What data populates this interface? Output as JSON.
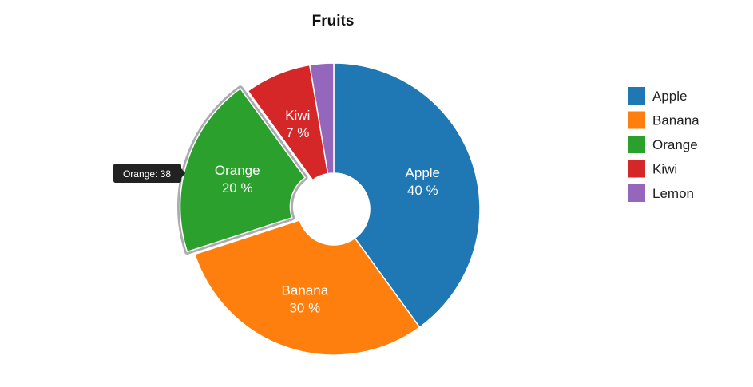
{
  "chart_data": {
    "type": "pie",
    "title": "Fruits",
    "donut": true,
    "legend_position": "right",
    "slices": [
      {
        "label": "Apple",
        "value": 76,
        "percent": 40,
        "color": "#1f77b4"
      },
      {
        "label": "Banana",
        "value": 57,
        "percent": 30,
        "color": "#ff7f0e"
      },
      {
        "label": "Orange",
        "value": 38,
        "percent": 20,
        "color": "#2ca02c"
      },
      {
        "label": "Kiwi",
        "value": 14,
        "percent": 7,
        "color": "#d62728"
      },
      {
        "label": "Lemon",
        "value": 5,
        "percent": 3,
        "color": "#9467bd"
      }
    ],
    "highlighted": "Orange",
    "tooltip": "Orange: 38"
  }
}
